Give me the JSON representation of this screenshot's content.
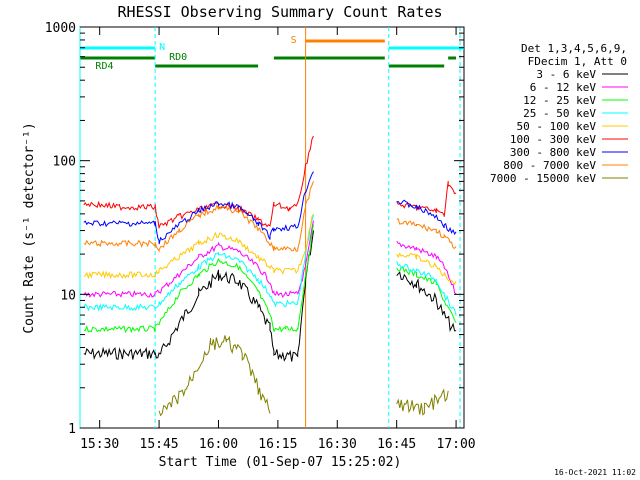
{
  "chart_data": {
    "type": "line",
    "title": "RHESSI Observing Summary Count Rates",
    "xlabel": "Start Time (01-Sep-07 15:25:02)",
    "ylabel": "Count Rate (s⁻¹ detector⁻¹)",
    "y_scale": "log",
    "ylim": [
      1,
      1000
    ],
    "xlim": [
      "15:25:02",
      "17:02"
    ],
    "x_ticks": [
      "15:30",
      "15:45",
      "16:00",
      "16:15",
      "16:30",
      "16:45",
      "17:00"
    ],
    "y_ticks": [
      "1",
      "10",
      "100",
      "1000"
    ],
    "legend_header": [
      "Det 1,3,4,5,6,9,",
      "FDecim 1, Att 0"
    ],
    "legend_position": "right",
    "series": [
      {
        "name": "3 - 6 keV",
        "color": "#000000",
        "points": [
          [
            "15:26",
            3.6
          ],
          [
            "15:44",
            3.6
          ],
          [
            "15:45",
            3.4
          ],
          [
            "15:50",
            6
          ],
          [
            "15:55",
            10
          ],
          [
            "16:00",
            14
          ],
          [
            "16:05",
            12.5
          ],
          [
            "16:10",
            8
          ],
          [
            "16:13",
            5.5
          ],
          [
            "16:14",
            3.5
          ],
          [
            "16:17",
            3.5
          ],
          [
            "16:20",
            3.3
          ],
          [
            "16:22",
            13
          ],
          [
            "16:24",
            30
          ]
        ],
        "points2": [
          [
            "16:45",
            15
          ],
          [
            "16:50",
            12
          ],
          [
            "16:55",
            9
          ],
          [
            "16:57",
            7
          ],
          [
            "17:00",
            5
          ]
        ]
      },
      {
        "name": "6 - 12 keV",
        "color": "#ff00ff",
        "points": [
          [
            "15:26",
            10
          ],
          [
            "15:44",
            10
          ],
          [
            "15:45",
            10.5
          ],
          [
            "15:50",
            14
          ],
          [
            "15:55",
            19
          ],
          [
            "16:00",
            23
          ],
          [
            "16:05",
            21
          ],
          [
            "16:10",
            16
          ],
          [
            "16:13",
            12.5
          ],
          [
            "16:14",
            10
          ],
          [
            "16:20",
            10
          ],
          [
            "16:22",
            16
          ],
          [
            "16:24",
            35
          ]
        ],
        "points2": [
          [
            "16:45",
            24
          ],
          [
            "16:50",
            22
          ],
          [
            "16:55",
            19
          ],
          [
            "16:57",
            16
          ],
          [
            "17:00",
            10
          ]
        ]
      },
      {
        "name": "12 - 25 keV",
        "color": "#00ff00",
        "points": [
          [
            "15:26",
            5.5
          ],
          [
            "15:44",
            5.5
          ],
          [
            "15:45",
            6
          ],
          [
            "15:50",
            10
          ],
          [
            "15:55",
            14
          ],
          [
            "16:00",
            18
          ],
          [
            "16:05",
            16
          ],
          [
            "16:10",
            10.5
          ],
          [
            "16:13",
            7
          ],
          [
            "16:14",
            5.5
          ],
          [
            "16:17",
            5.5
          ],
          [
            "16:20",
            5.5
          ],
          [
            "16:22",
            14
          ],
          [
            "16:24",
            32
          ]
        ],
        "points2": [
          [
            "16:45",
            16
          ],
          [
            "16:50",
            14
          ],
          [
            "16:55",
            12
          ],
          [
            "16:57",
            9
          ],
          [
            "17:00",
            6
          ]
        ]
      },
      {
        "name": "25 - 50 keV",
        "color": "#00ffff",
        "points": [
          [
            "15:26",
            8
          ],
          [
            "15:44",
            8
          ],
          [
            "15:45",
            8.5
          ],
          [
            "15:50",
            12
          ],
          [
            "15:55",
            16
          ],
          [
            "16:00",
            20
          ],
          [
            "16:05",
            18
          ],
          [
            "16:10",
            13
          ],
          [
            "16:13",
            10
          ],
          [
            "16:14",
            8.5
          ],
          [
            "16:20",
            8.5
          ],
          [
            "16:22",
            20
          ],
          [
            "16:24",
            40
          ]
        ],
        "points2": [
          [
            "16:45",
            17
          ],
          [
            "16:50",
            15
          ],
          [
            "16:55",
            13
          ],
          [
            "16:57",
            10
          ],
          [
            "17:00",
            7
          ]
        ]
      },
      {
        "name": "50 - 100 keV",
        "color": "#ffc800",
        "points": [
          [
            "15:26",
            14
          ],
          [
            "15:44",
            14
          ],
          [
            "15:45",
            15
          ],
          [
            "15:50",
            19
          ],
          [
            "15:55",
            24
          ],
          [
            "16:00",
            28
          ],
          [
            "16:05",
            25
          ],
          [
            "16:10",
            19
          ],
          [
            "16:13",
            16
          ],
          [
            "16:14",
            15
          ],
          [
            "16:20",
            15
          ],
          [
            "16:22",
            22
          ],
          [
            "16:24",
            42
          ]
        ],
        "points2": [
          [
            "16:45",
            20
          ],
          [
            "16:50",
            19
          ],
          [
            "16:55",
            16
          ],
          [
            "16:57",
            14
          ],
          [
            "17:00",
            12
          ]
        ]
      },
      {
        "name": "100 - 300 keV",
        "color": "#ff0000",
        "points": [
          [
            "15:26",
            48
          ],
          [
            "15:35",
            45
          ],
          [
            "15:44",
            45
          ],
          [
            "15:45",
            32
          ],
          [
            "15:50",
            38
          ],
          [
            "15:55",
            43
          ],
          [
            "16:00",
            47
          ],
          [
            "16:05",
            44
          ],
          [
            "16:10",
            36
          ],
          [
            "16:13",
            32
          ],
          [
            "16:14",
            47
          ],
          [
            "16:18",
            44
          ],
          [
            "16:20",
            46
          ],
          [
            "16:22",
            90
          ],
          [
            "16:24",
            160
          ]
        ],
        "points2": [
          [
            "16:45",
            47
          ],
          [
            "16:50",
            45
          ],
          [
            "16:55",
            42
          ],
          [
            "16:57",
            40
          ],
          [
            "16:58",
            68
          ],
          [
            "17:00",
            55
          ]
        ]
      },
      {
        "name": "300 - 800 keV",
        "color": "#0000ff",
        "points": [
          [
            "15:26",
            34
          ],
          [
            "15:44",
            34
          ],
          [
            "15:45",
            25
          ],
          [
            "15:50",
            33
          ],
          [
            "15:55",
            42
          ],
          [
            "16:00",
            48
          ],
          [
            "16:05",
            45
          ],
          [
            "16:10",
            34
          ],
          [
            "16:13",
            27
          ],
          [
            "16:14",
            31
          ],
          [
            "16:20",
            32
          ],
          [
            "16:22",
            60
          ],
          [
            "16:24",
            85
          ]
        ],
        "points2": [
          [
            "16:45",
            50
          ],
          [
            "16:50",
            45
          ],
          [
            "16:55",
            38
          ],
          [
            "16:57",
            33
          ],
          [
            "17:00",
            28
          ]
        ]
      },
      {
        "name": "800 - 7000 keV",
        "color": "#ff8000",
        "points": [
          [
            "15:26",
            24
          ],
          [
            "15:44",
            24
          ],
          [
            "15:45",
            22
          ],
          [
            "15:50",
            30
          ],
          [
            "15:55",
            39
          ],
          [
            "16:00",
            45
          ],
          [
            "16:05",
            42
          ],
          [
            "16:10",
            31
          ],
          [
            "16:13",
            24
          ],
          [
            "16:14",
            22
          ],
          [
            "16:20",
            22
          ],
          [
            "16:22",
            45
          ],
          [
            "16:24",
            70
          ]
        ],
        "points2": [
          [
            "16:45",
            35
          ],
          [
            "16:50",
            33
          ],
          [
            "16:55",
            30
          ],
          [
            "16:57",
            27
          ],
          [
            "17:00",
            22
          ]
        ]
      },
      {
        "name": "7000 - 15000 keV",
        "color": "#808000",
        "points": [
          [
            "15:45",
            1.2
          ],
          [
            "15:52",
            2
          ],
          [
            "15:55",
            3
          ],
          [
            "15:58",
            4.2
          ],
          [
            "16:02",
            4.4
          ],
          [
            "16:06",
            3.6
          ],
          [
            "16:10",
            2
          ],
          [
            "16:13",
            1.3
          ]
        ],
        "points2": [
          [
            "16:45",
            1.5
          ],
          [
            "16:52",
            1.4
          ],
          [
            "16:58",
            1.8
          ]
        ]
      }
    ],
    "annotations": [
      {
        "text": "N",
        "color": "#00ffff",
        "time": "15:44"
      },
      {
        "text": "RD0",
        "color": "#008000",
        "time": "15:45"
      },
      {
        "text": "RD4",
        "color": "#008000",
        "time": "15:36"
      },
      {
        "text": "S",
        "color": "#ff8000",
        "time": "16:21"
      }
    ],
    "vertical_lines": [
      {
        "time": "15:25:02",
        "color": "#00ffff",
        "style": "solid"
      },
      {
        "time": "15:44",
        "color": "#00ffff",
        "style": "dashed"
      },
      {
        "time": "16:22",
        "color": "#ff8000",
        "style": "solid"
      },
      {
        "time": "16:43",
        "color": "#00ffff",
        "style": "dashed"
      },
      {
        "time": "17:01",
        "color": "#00ffff",
        "style": "dashed"
      }
    ],
    "flag_bars": [
      {
        "color": "#00ffff",
        "from": "15:25:02",
        "to": "15:44",
        "level": "upper"
      },
      {
        "color": "#00ffff",
        "from": "16:43",
        "to": "17:02",
        "level": "upper"
      },
      {
        "color": "#ff8000",
        "from": "16:22",
        "to": "16:42",
        "level": "top"
      },
      {
        "color": "#008000",
        "from": "15:25:02",
        "to": "15:44",
        "level": "middle"
      },
      {
        "color": "#008000",
        "from": "15:44",
        "to": "16:10",
        "level": "lower"
      },
      {
        "color": "#008000",
        "from": "16:14",
        "to": "16:42",
        "level": "middle"
      },
      {
        "color": "#008000",
        "from": "16:43",
        "to": "16:57",
        "level": "lower"
      },
      {
        "color": "#008000",
        "from": "16:58",
        "to": "17:00",
        "level": "middle"
      }
    ],
    "footer": "16-Oct-2021 11:02"
  }
}
